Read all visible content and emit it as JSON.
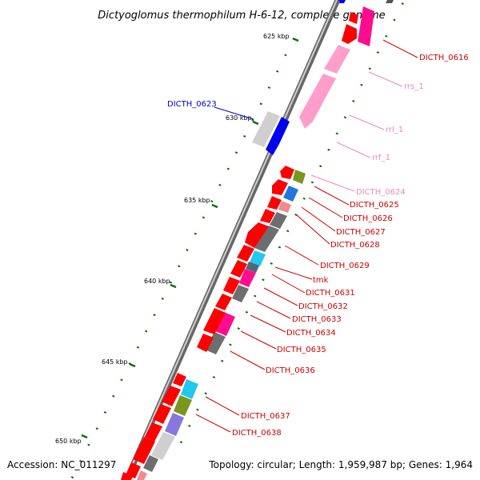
{
  "title": "Dictyoglomus thermophilum H-6-12, complete genome",
  "footer": {
    "accession": "Accession: NC_011297",
    "topology": "Topology: circular; Length: 1,959,987 bp; Genes: 1,964"
  },
  "colors": {
    "cds": "#ff0000",
    "rrna": "#ff9ecb",
    "magenta": "#ff0d8f",
    "grey": "#6e6e6e",
    "light_grey": "#cfcfcf",
    "blue": "#0000ee",
    "cyan": "#22c8ee",
    "olive": "#7a961e",
    "purple": "#8877dd",
    "salmon": "#f08c8c",
    "tick": "#0a6a0a"
  },
  "kbp_labels": [
    "625 kbp",
    "630 kbp",
    "635 kbp",
    "640 kbp",
    "645 kbp",
    "650 kbp"
  ],
  "gene_labels": [
    {
      "id": "l0616",
      "text": "DICTH_0616",
      "color": "#cc0000"
    },
    {
      "id": "lrrs",
      "text": "rrs_1",
      "color": "#ee88bb"
    },
    {
      "id": "lrrl",
      "text": "rrl_1",
      "color": "#ee88bb"
    },
    {
      "id": "lrrf",
      "text": "rrf_1",
      "color": "#ee88bb"
    },
    {
      "id": "l0623",
      "text": "DICTH_0623",
      "color": "#0000cc"
    },
    {
      "id": "l0624",
      "text": "DICTH_0624",
      "color": "#ee88bb"
    },
    {
      "id": "l0625",
      "text": "DICTH_0625",
      "color": "#cc0000"
    },
    {
      "id": "l0626",
      "text": "DICTH_0626",
      "color": "#cc0000"
    },
    {
      "id": "l0627",
      "text": "DICTH_0627",
      "color": "#cc0000"
    },
    {
      "id": "l0628",
      "text": "DICTH_0628",
      "color": "#cc0000"
    },
    {
      "id": "l0629",
      "text": "DICTH_0629",
      "color": "#cc0000"
    },
    {
      "id": "ltmk",
      "text": "tmk",
      "color": "#cc0000"
    },
    {
      "id": "l0631",
      "text": "DICTH_0631",
      "color": "#cc0000"
    },
    {
      "id": "l0632",
      "text": "DICTH_0632",
      "color": "#cc0000"
    },
    {
      "id": "l0633",
      "text": "DICTH_0633",
      "color": "#cc0000"
    },
    {
      "id": "l0634",
      "text": "DICTH_0634",
      "color": "#cc0000"
    },
    {
      "id": "l0635",
      "text": "DICTH_0635",
      "color": "#cc0000"
    },
    {
      "id": "l0636",
      "text": "DICTH_0636",
      "color": "#cc0000"
    },
    {
      "id": "l0637",
      "text": "DICTH_0637",
      "color": "#cc0000"
    },
    {
      "id": "l0638",
      "text": "DICTH_0638",
      "color": "#cc0000"
    }
  ]
}
